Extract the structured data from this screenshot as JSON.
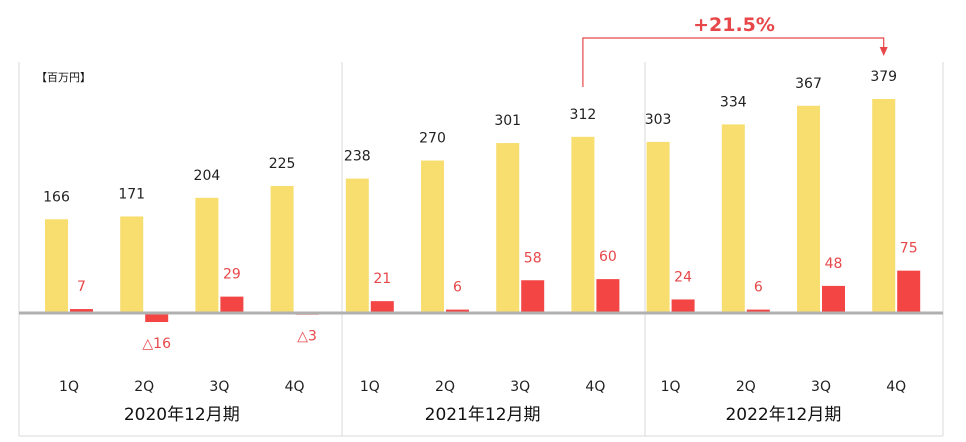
{
  "unit": "【百万円】",
  "growth": {
    "label": "+21.5%",
    "color": "#e8474a"
  },
  "colors": {
    "revenue": "#f7de6e",
    "profit": "#f44545",
    "profit_text": "#e8474a",
    "zero_line": "#b0b0b0",
    "divider": "#d9d9d9"
  },
  "chart_data": {
    "type": "bar",
    "years": [
      "2020年12月期",
      "2021年12月期",
      "2022年12月期"
    ],
    "categories": [
      "1Q",
      "2Q",
      "3Q",
      "4Q",
      "1Q",
      "2Q",
      "3Q",
      "4Q",
      "1Q",
      "2Q",
      "3Q",
      "4Q"
    ],
    "series": [
      {
        "values": [
          166,
          171,
          204,
          225,
          238,
          270,
          301,
          312,
          303,
          334,
          367,
          379
        ],
        "labels": [
          "166",
          "171",
          "204",
          "225",
          "238",
          "270",
          "301",
          "312",
          "303",
          "334",
          "367",
          "379"
        ]
      },
      {
        "values": [
          7,
          -16,
          29,
          -3,
          21,
          6,
          58,
          60,
          24,
          6,
          48,
          75
        ],
        "labels": [
          "7",
          "△16",
          "29",
          "△3",
          "21",
          "6",
          "58",
          "60",
          "24",
          "6",
          "48",
          "75"
        ]
      }
    ]
  }
}
